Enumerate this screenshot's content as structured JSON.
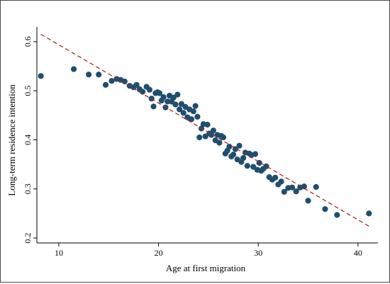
{
  "chart_data": {
    "type": "scatter",
    "title": "",
    "xlabel": "Age at first migration",
    "ylabel": "Long-term residence intention",
    "xlim": [
      7.8,
      42
    ],
    "ylim": [
      0.19,
      0.63
    ],
    "xticks": [
      10,
      20,
      30,
      40
    ],
    "yticks": [
      0.2,
      0.3,
      0.4,
      0.5,
      0.6
    ],
    "ytick_labels": [
      "0.2",
      "0.3",
      "0.4",
      "0.5",
      "0.6"
    ],
    "grid": false,
    "legend": "none",
    "colors": {
      "points": "#1f4e6e",
      "fit": "#a52a2a",
      "frame": "#4a4a4a"
    },
    "series": [
      {
        "kind": "points",
        "x": [
          8.2,
          11.5,
          13,
          14,
          14.7,
          15.3,
          15.8,
          16.2,
          16.6,
          17.1,
          17.5,
          17.8,
          18.1,
          18.4,
          18.8,
          19.1,
          19.3,
          19.5,
          19.7,
          19.9,
          20.1,
          20.3,
          20.5,
          20.7,
          20.9,
          21.1,
          21.3,
          21.5,
          21.7,
          21.9,
          22.1,
          22.3,
          22.5,
          22.7,
          22.9,
          23.1,
          23.3,
          23.5,
          23.7,
          23.9,
          24.1,
          24.3,
          24.5,
          24.7,
          24.9,
          25.1,
          25.3,
          25.5,
          25.7,
          25.9,
          26.1,
          26.3,
          26.5,
          26.7,
          26.9,
          27.1,
          27.3,
          27.5,
          27.7,
          27.9,
          28.1,
          28.3,
          28.5,
          28.7,
          28.9,
          29.1,
          29.3,
          29.5,
          29.7,
          29.9,
          30.1,
          30.3,
          30.5,
          30.8,
          31.1,
          31.4,
          31.7,
          32.0,
          32.3,
          32.6,
          33.0,
          33.4,
          33.8,
          34.2,
          34.6,
          35.0,
          35.8,
          36.7,
          37.9,
          41.1
        ],
        "y": [
          0.53,
          0.544,
          0.533,
          0.533,
          0.512,
          0.52,
          0.524,
          0.522,
          0.519,
          0.51,
          0.507,
          0.512,
          0.503,
          0.498,
          0.508,
          0.502,
          0.484,
          0.468,
          0.495,
          0.497,
          0.495,
          0.48,
          0.487,
          0.466,
          0.478,
          0.49,
          0.478,
          0.486,
          0.472,
          0.492,
          0.462,
          0.473,
          0.455,
          0.467,
          0.446,
          0.462,
          0.442,
          0.458,
          0.469,
          0.447,
          0.405,
          0.423,
          0.432,
          0.407,
          0.431,
          0.413,
          0.41,
          0.419,
          0.399,
          0.41,
          0.394,
          0.408,
          0.405,
          0.372,
          0.378,
          0.386,
          0.366,
          0.37,
          0.381,
          0.36,
          0.388,
          0.355,
          0.363,
          0.374,
          0.347,
          0.372,
          0.369,
          0.345,
          0.371,
          0.339,
          0.353,
          0.337,
          0.341,
          0.346,
          0.324,
          0.319,
          0.323,
          0.309,
          0.315,
          0.294,
          0.302,
          0.303,
          0.295,
          0.303,
          0.305,
          0.276,
          0.304,
          0.259,
          0.247,
          0.25
        ]
      },
      {
        "kind": "fitted-line",
        "x": [
          8.2,
          41.1
        ],
        "y": [
          0.615,
          0.224
        ]
      }
    ]
  }
}
